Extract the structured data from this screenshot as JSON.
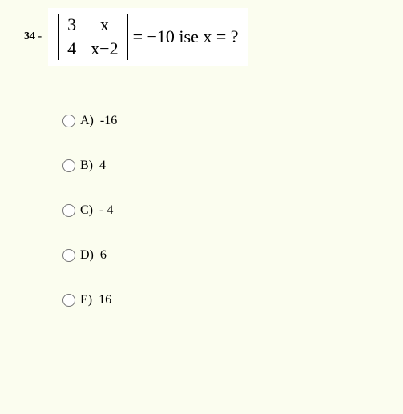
{
  "question": {
    "number": "34 -",
    "matrix": {
      "r1c1": "3",
      "r1c2": "x",
      "r2c1": "4",
      "r2c2": "x−2"
    },
    "rhs": "= −10  ise  x = ?"
  },
  "options": [
    {
      "label": "A)",
      "value": "-16"
    },
    {
      "label": "B)",
      "value": "4"
    },
    {
      "label": "C)",
      "value": "- 4"
    },
    {
      "label": "D)",
      "value": "6"
    },
    {
      "label": "E)",
      "value": "16"
    }
  ],
  "colors": {
    "background": "#fbfdef",
    "box_background": "#ffffff",
    "text": "#000000"
  }
}
